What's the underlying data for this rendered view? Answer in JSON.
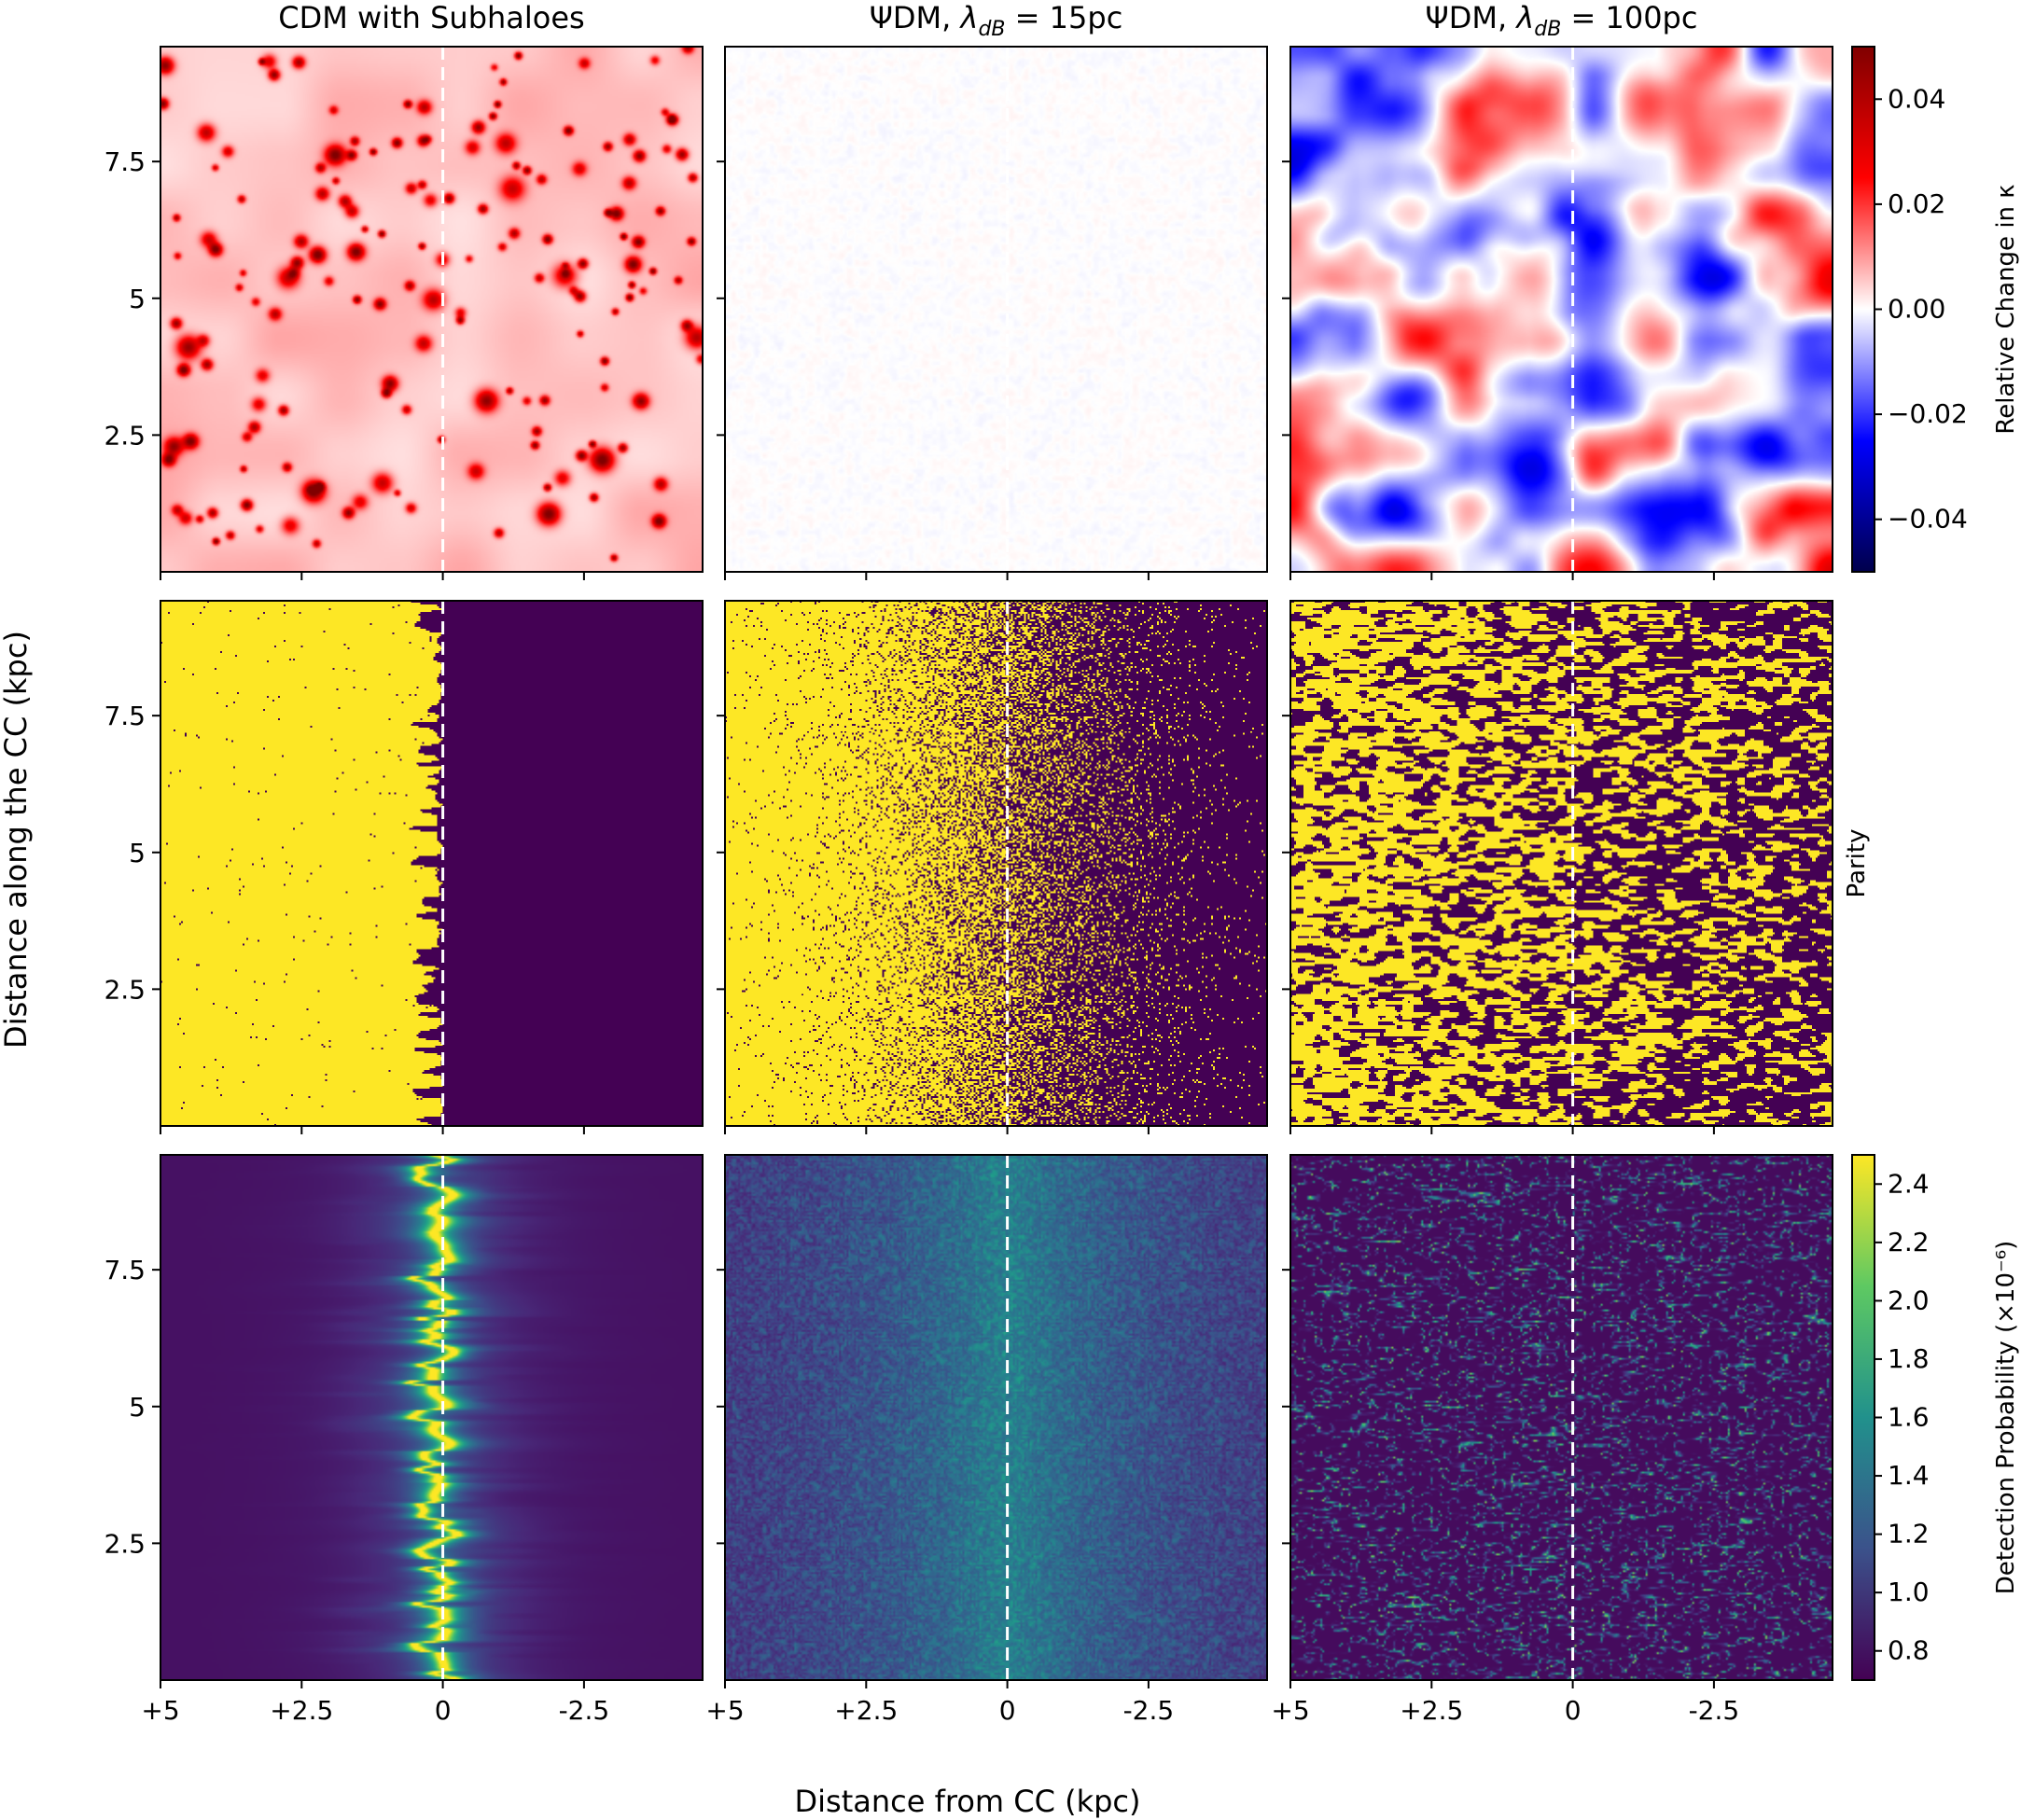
{
  "chart_data": {
    "type": "heatmap",
    "column_titles": [
      "CDM with Subhaloes",
      "ΨDM, λdB = 15pc",
      "ΨDM, λdB = 100pc"
    ],
    "column_title_parts": [
      {
        "main": "CDM with Subhaloes",
        "symbol": "",
        "sub": "",
        "tail": ""
      },
      {
        "main": "ΨDM, ",
        "symbol": "λ",
        "sub": "dB",
        "tail": " = 15pc"
      },
      {
        "main": "ΨDM, ",
        "symbol": "λ",
        "sub": "dB",
        "tail": " = 100pc"
      }
    ],
    "row_quantities": [
      "Relative Change in κ",
      "Parity",
      "Detection Probability (×10⁻⁶)"
    ],
    "xlabel": "Distance from CC (kpc)",
    "ylabel": "Distance along the CC (kpc)",
    "x_ticks": [
      5,
      2.5,
      0,
      -2.5
    ],
    "x_tick_labels": [
      "+5",
      "+2.5",
      "0",
      "-2.5"
    ],
    "xlim": [
      5,
      -4.6
    ],
    "y_ticks": [
      2.5,
      5,
      7.5
    ],
    "y_tick_labels": [
      "2.5",
      "5",
      "7.5"
    ],
    "ylim": [
      0,
      9.6
    ],
    "critical_curve_x": 0,
    "critical_curve_style": "white dashed",
    "colorbars": [
      {
        "label": "Relative Change in κ",
        "colormap": "seismic",
        "range": [
          -0.05,
          0.05
        ],
        "ticks": [
          0.04,
          0.02,
          0.0,
          -0.02,
          -0.04
        ],
        "tick_labels": [
          "0.04",
          "0.02",
          "0.00",
          "−0.02",
          "−0.04"
        ],
        "colors": [
          "#00004c",
          "#0000ff",
          "#ffffff",
          "#ff0000",
          "#800000"
        ]
      },
      {
        "label": "Parity",
        "colors": [
          "#440154",
          "#fde725"
        ]
      },
      {
        "label": "Detection Probability (×10⁻⁶)",
        "colormap": "viridis",
        "range": [
          0.7,
          2.5
        ],
        "ticks": [
          2.4,
          2.2,
          2.0,
          1.8,
          1.6,
          1.4,
          1.2,
          1.0,
          0.8
        ],
        "tick_labels": [
          "2.4",
          "2.2",
          "2.0",
          "1.8",
          "1.6",
          "1.4",
          "1.2",
          "1.0",
          "0.8"
        ],
        "colors": [
          "#440154",
          "#3b528b",
          "#21918c",
          "#5ec962",
          "#fde725"
        ]
      }
    ]
  }
}
